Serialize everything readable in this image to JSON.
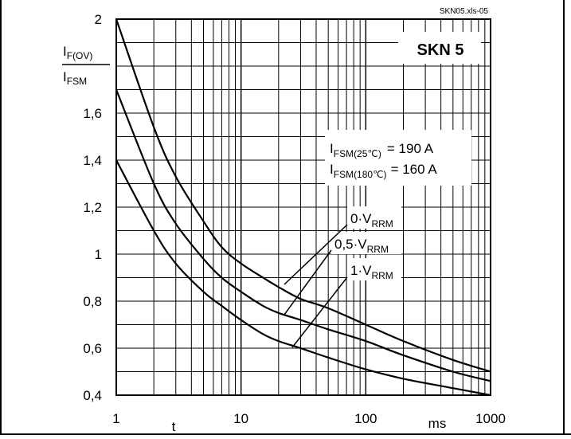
{
  "file_tag": "SKN05.xls-05",
  "chart_data": {
    "type": "line",
    "title": "SKN 5",
    "ylabel": {
      "main": "I",
      "sub_top": "F(OV)",
      "denom_main": "I",
      "denom_sub": "FSM"
    },
    "xlabel": "t",
    "xunit": "ms",
    "x_scale": "log",
    "xlim": [
      1,
      1000
    ],
    "ylim": [
      0.4,
      2
    ],
    "x_ticks": [
      1,
      10,
      100,
      1000
    ],
    "x_tick_labels": [
      "1",
      "10",
      "100",
      "1000"
    ],
    "y_ticks": [
      0.4,
      0.6,
      0.8,
      1.0,
      1.2,
      1.4,
      1.6,
      2.0
    ],
    "y_tick_labels": [
      "0,4",
      "0,6",
      "0,8",
      "1",
      "1,2",
      "1,4",
      "1,6",
      "2"
    ],
    "grid": true,
    "series": [
      {
        "name": "0·V_RRM",
        "label_main": "0·V",
        "label_sub": "RRM",
        "x": [
          1,
          2,
          3,
          5,
          7,
          10,
          15,
          20,
          30,
          50,
          100,
          200,
          500,
          1000
        ],
        "y": [
          2.0,
          1.54,
          1.33,
          1.14,
          1.03,
          0.96,
          0.9,
          0.86,
          0.81,
          0.77,
          0.7,
          0.63,
          0.55,
          0.5
        ]
      },
      {
        "name": "0,5·V_RRM",
        "label_main": "0,5·V",
        "label_sub": "RRM",
        "x": [
          1,
          2,
          3,
          5,
          7,
          10,
          15,
          20,
          30,
          50,
          100,
          200,
          500,
          1000
        ],
        "y": [
          1.7,
          1.3,
          1.13,
          0.98,
          0.9,
          0.84,
          0.78,
          0.75,
          0.72,
          0.68,
          0.63,
          0.57,
          0.5,
          0.46
        ]
      },
      {
        "name": "1·V_RRM",
        "label_main": "1·V",
        "label_sub": "RRM",
        "x": [
          1,
          2,
          3,
          5,
          7,
          10,
          15,
          20,
          30,
          50,
          100,
          200,
          500,
          1000
        ],
        "y": [
          1.4,
          1.1,
          0.96,
          0.84,
          0.78,
          0.72,
          0.66,
          0.63,
          0.6,
          0.56,
          0.51,
          0.47,
          0.43,
          0.4
        ]
      }
    ],
    "annotations": [
      {
        "main": "I",
        "sub": "FSM(25℃)",
        "value": "= 190 A"
      },
      {
        "main": "I",
        "sub": "FSM(180℃)",
        "value": "= 160 A"
      }
    ]
  }
}
